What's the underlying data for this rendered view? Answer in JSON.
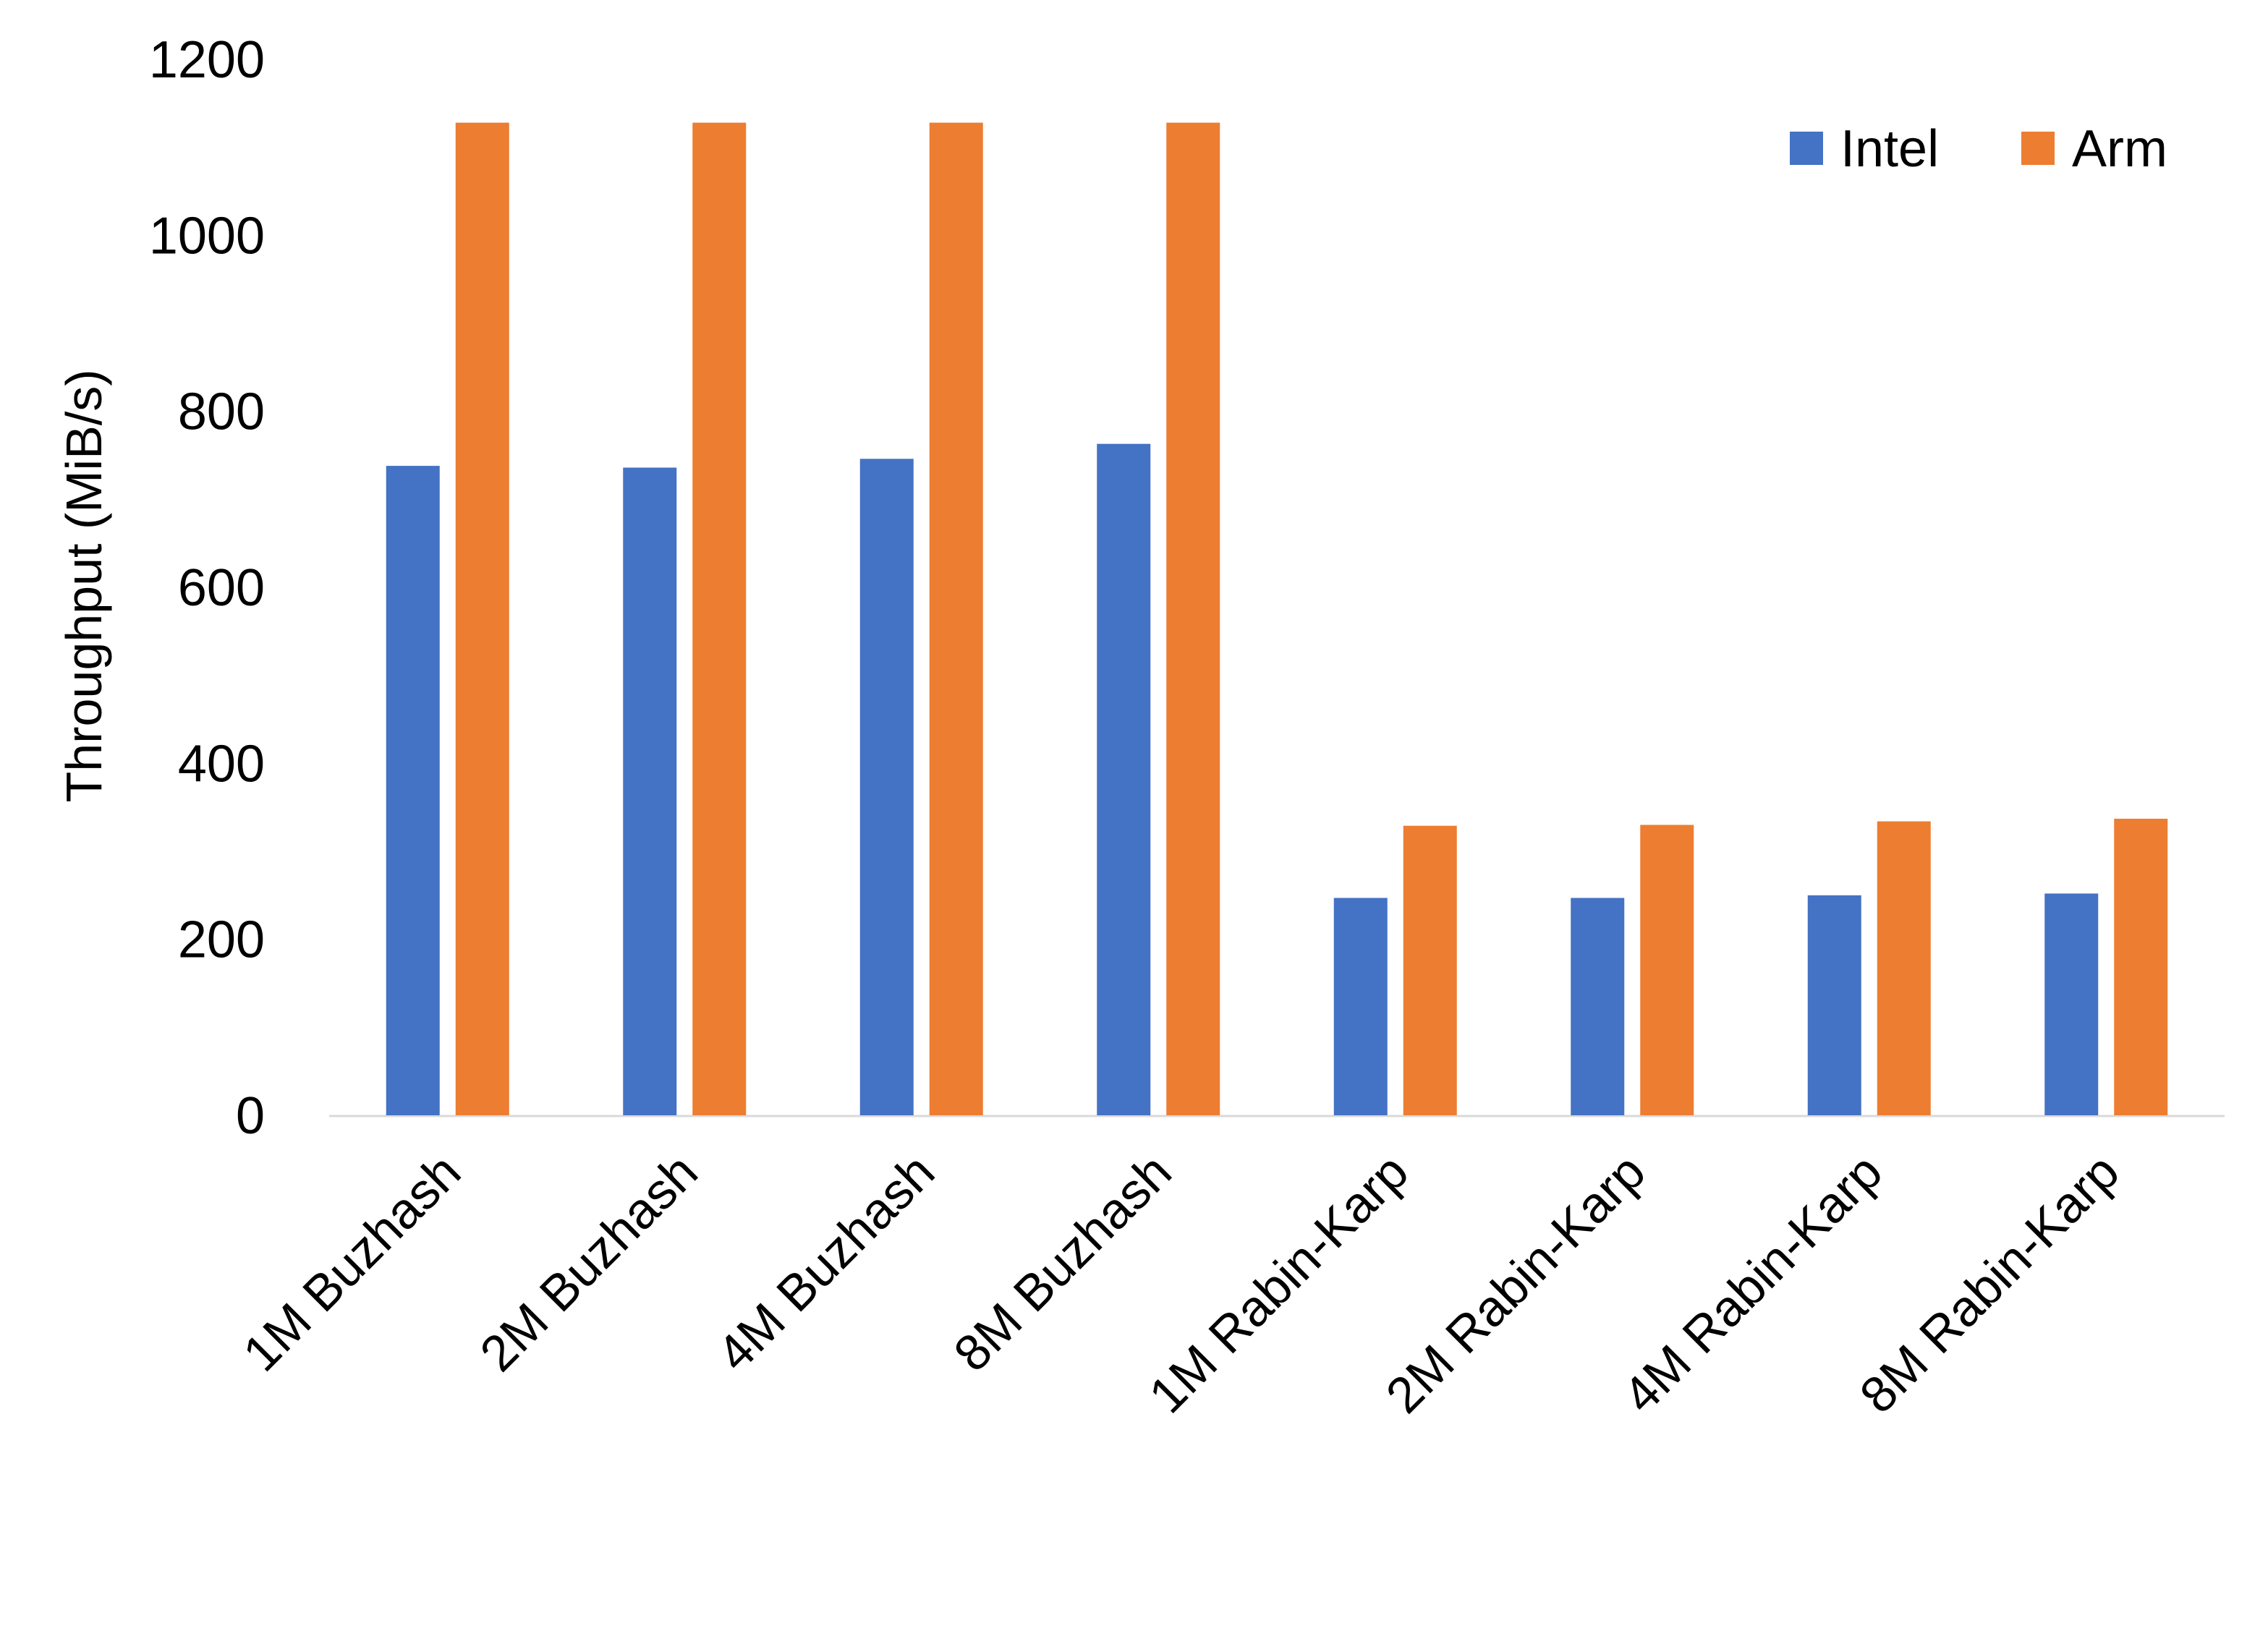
{
  "chart_data": {
    "type": "bar",
    "title": "",
    "xlabel": "",
    "ylabel": "Throughput (MiB/s)",
    "ylim": [
      0,
      1200
    ],
    "yticks": [
      0,
      200,
      400,
      600,
      800,
      1000,
      1200
    ],
    "grid": false,
    "legend_position": "top-right",
    "categories": [
      "1M Buzhash",
      "2M Buzhash",
      "4M Buzhash",
      "8M Buzhash",
      "1M Rabin-Karp",
      "2M Rabin-Karp",
      "4M Rabin-Karp",
      "8M Rabin-Karp"
    ],
    "series": [
      {
        "name": "Intel",
        "color": "#4472C4",
        "values": [
          738,
          736,
          746,
          763,
          247,
          247,
          250,
          252
        ]
      },
      {
        "name": "Arm",
        "color": "#ED7D31",
        "values": [
          1128,
          1128,
          1128,
          1128,
          329,
          330,
          334,
          337
        ]
      }
    ]
  }
}
